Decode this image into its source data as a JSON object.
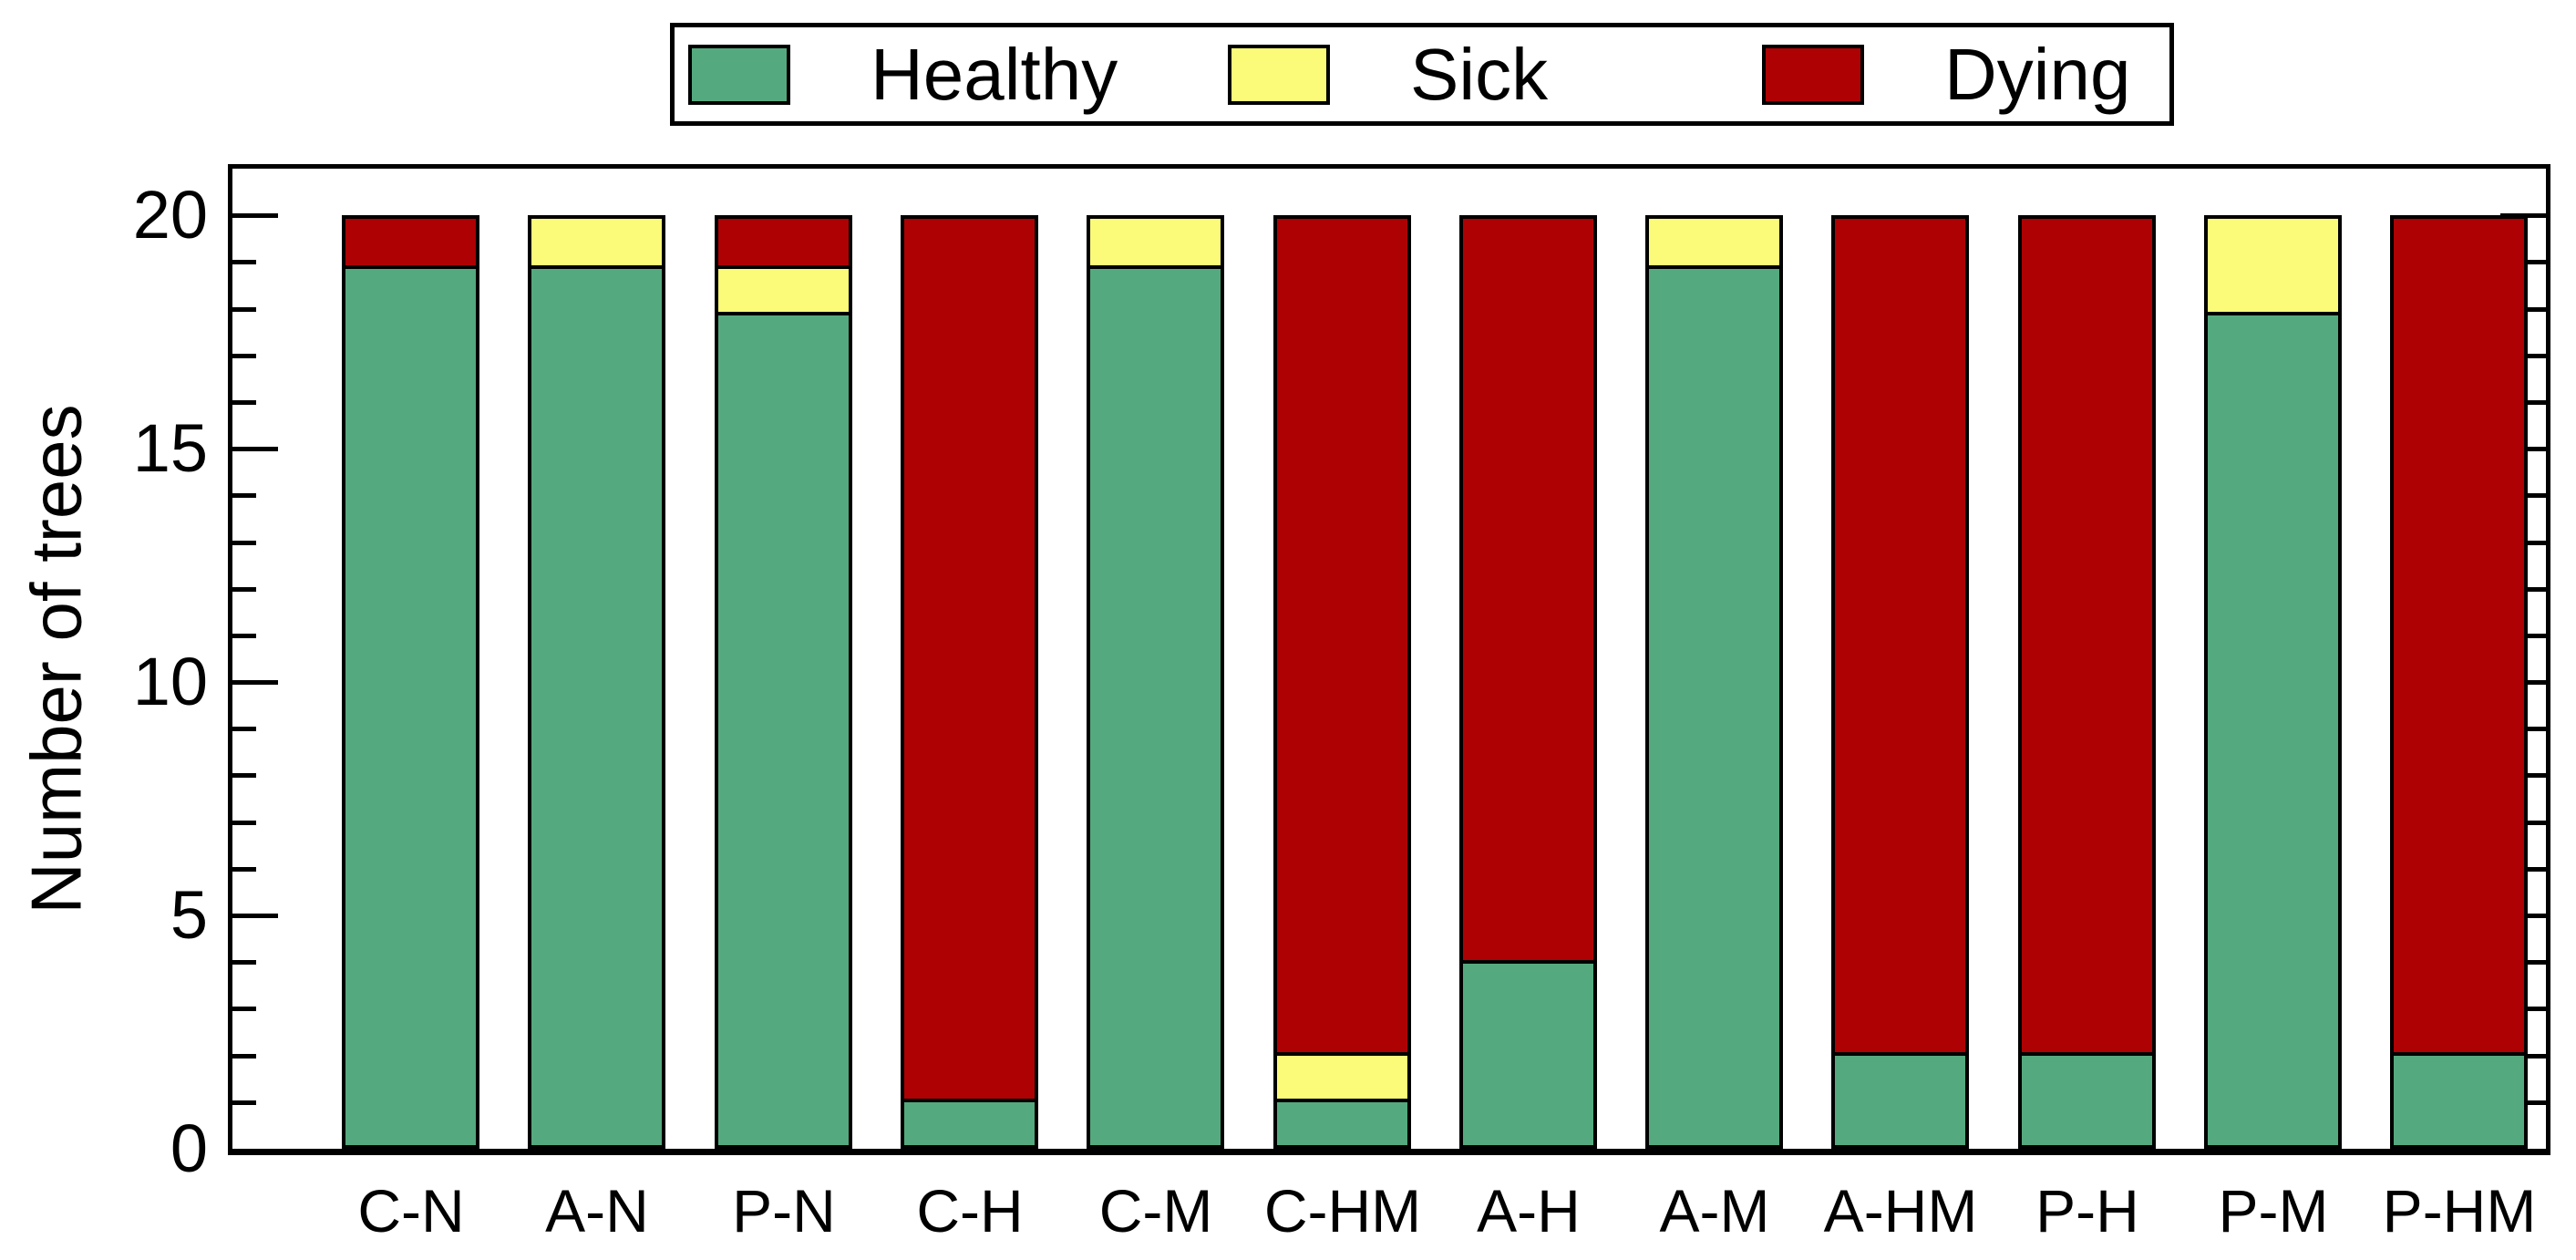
{
  "legend": {
    "items": [
      {
        "label": "Healthy",
        "color": "#55A97E"
      },
      {
        "label": "Sick",
        "color": "#FBFB79"
      },
      {
        "label": "Dying",
        "color": "#AE0103"
      }
    ]
  },
  "chart_data": {
    "type": "bar",
    "stacked": true,
    "title": "",
    "xlabel": "",
    "ylabel": "Number of trees",
    "ylim": [
      0,
      21
    ],
    "bar_total": 20,
    "yticks": [
      0,
      5,
      10,
      15,
      20
    ],
    "minor_tick_interval": 1,
    "grid": false,
    "legend_position": "top",
    "categories": [
      "C-N",
      "A-N",
      "P-N",
      "C-H",
      "C-M",
      "C-HM",
      "A-H",
      "A-M",
      "A-HM",
      "P-H",
      "P-M",
      "P-HM"
    ],
    "series": [
      {
        "name": "Healthy",
        "color": "#55A97E",
        "values": [
          19,
          19,
          18,
          1,
          19,
          1,
          4,
          19,
          2,
          2,
          18,
          2
        ]
      },
      {
        "name": "Sick",
        "color": "#FBFB79",
        "values": [
          0,
          1,
          1,
          0,
          1,
          1,
          0,
          1,
          0,
          0,
          2,
          0
        ]
      },
      {
        "name": "Dying",
        "color": "#AE0103",
        "values": [
          1,
          0,
          1,
          19,
          0,
          18,
          16,
          0,
          18,
          18,
          0,
          18
        ]
      }
    ],
    "colors": {
      "border": "#000000",
      "background": "#ffffff"
    }
  }
}
